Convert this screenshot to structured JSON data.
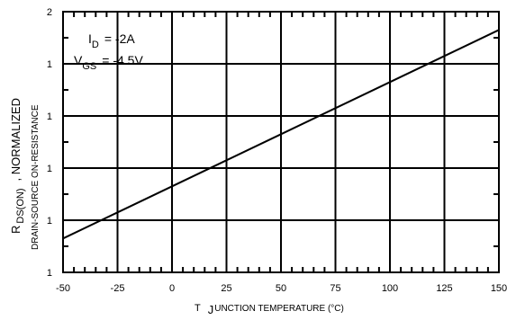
{
  "chart_data": {
    "type": "line",
    "x_tick_labels": [
      "-50",
      "-25",
      "0",
      "25",
      "50",
      "75",
      "100",
      "125",
      "150"
    ],
    "y_tick_labels": [
      "1",
      "1",
      "1",
      "1",
      "1",
      "2"
    ],
    "x_range": [
      -50,
      150
    ],
    "y_tick_count": 6,
    "xlabel": {
      "main": "T",
      "subscript": "J",
      "rest": "UNCTION TEMPERATURE (°C)"
    },
    "ylabel": {
      "main": "R",
      "subscript": "DS(ON)",
      "rest": ", NORMALIZED",
      "line2": "DRAIN-SOURCE ON-RESISTANCE"
    },
    "annotations": {
      "line1": {
        "main": "I",
        "subscript": "D",
        "rest": "= -2A"
      },
      "line2": {
        "main": "V",
        "subscript": "GS",
        "rest": "=   -4.5V"
      }
    },
    "grid": true,
    "series": [
      {
        "x": [
          -50,
          -25,
          0,
          25,
          50,
          75,
          100,
          125,
          150
        ],
        "y_fraction_of_axis": [
          0.13,
          0.23,
          0.33,
          0.43,
          0.53,
          0.63,
          0.73,
          0.83,
          0.93
        ]
      }
    ]
  }
}
